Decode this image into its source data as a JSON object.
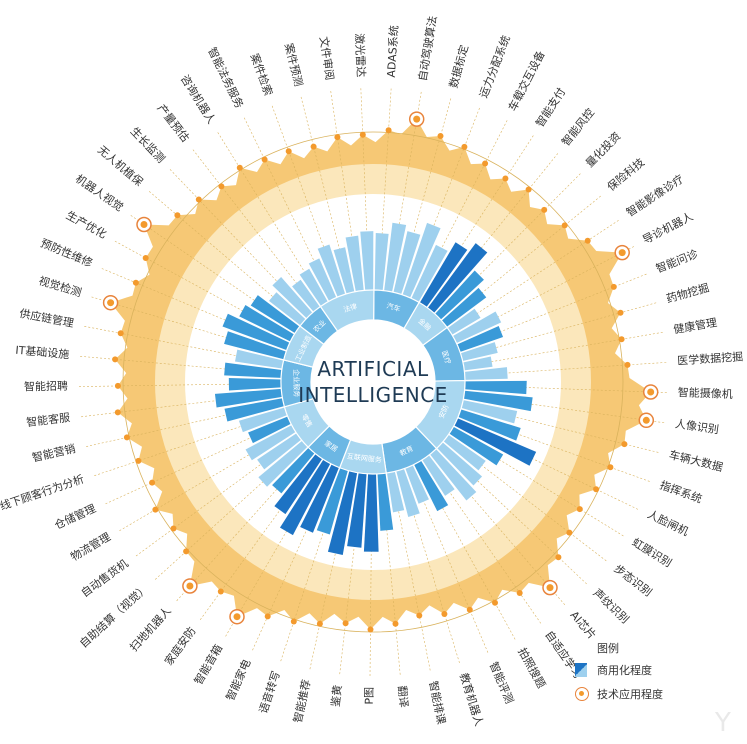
{
  "chart_data": {
    "type": "radial-bar",
    "title": "ARTIFICIAL INTELLIGENCE",
    "title_lines": [
      "ARTIFICIAL",
      "INTELLIGENCE"
    ],
    "applications": [
      {
        "label": "ADAS系统",
        "tech_level": 0.55,
        "highlight": false
      },
      {
        "label": "自动驾驶算法",
        "tech_level": 0.7,
        "highlight": true
      },
      {
        "label": "数据标定",
        "tech_level": 0.58,
        "highlight": false
      },
      {
        "label": "运力分配系统",
        "tech_level": 0.55,
        "highlight": false
      },
      {
        "label": "车载交互设备",
        "tech_level": 0.48,
        "highlight": false
      },
      {
        "label": "智能支付",
        "tech_level": 0.45,
        "highlight": false
      },
      {
        "label": "智能风控",
        "tech_level": 0.5,
        "highlight": false
      },
      {
        "label": "量化投资",
        "tech_level": 0.45,
        "highlight": false
      },
      {
        "label": "保险科技",
        "tech_level": 0.5,
        "highlight": false
      },
      {
        "label": "智能影像诊疗",
        "tech_level": 0.6,
        "highlight": false
      },
      {
        "label": "导诊机器人",
        "tech_level": 0.85,
        "highlight": true
      },
      {
        "label": "智能问诊",
        "tech_level": 0.62,
        "highlight": false
      },
      {
        "label": "药物挖掘",
        "tech_level": 0.6,
        "highlight": false
      },
      {
        "label": "健康管理",
        "tech_level": 0.55,
        "highlight": false
      },
      {
        "label": "医学数据挖掘",
        "tech_level": 0.58,
        "highlight": false
      },
      {
        "label": "智能摄像机",
        "tech_level": 0.82,
        "highlight": true
      },
      {
        "label": "人像识别",
        "tech_level": 0.8,
        "highlight": true
      },
      {
        "label": "车辆大数据",
        "tech_level": 0.62,
        "highlight": false
      },
      {
        "label": "指挥系统",
        "tech_level": 0.55,
        "highlight": false
      },
      {
        "label": "人脸闸机",
        "tech_level": 0.5,
        "highlight": false
      },
      {
        "label": "虹膜识别",
        "tech_level": 0.45,
        "highlight": false
      },
      {
        "label": "步态识别",
        "tech_level": 0.5,
        "highlight": false
      },
      {
        "label": "声纹识别",
        "tech_level": 0.58,
        "highlight": false
      },
      {
        "label": "AI芯片",
        "tech_level": 0.75,
        "highlight": true
      },
      {
        "label": "自适应学习",
        "tech_level": 0.6,
        "highlight": false
      },
      {
        "label": "拍照搜题",
        "tech_level": 0.55,
        "highlight": false
      },
      {
        "label": "智能评测",
        "tech_level": 0.5,
        "highlight": false
      },
      {
        "label": "教育机器人",
        "tech_level": 0.45,
        "highlight": false
      },
      {
        "label": "智能排课",
        "tech_level": 0.4,
        "highlight": false
      },
      {
        "label": "翻译",
        "tech_level": 0.45,
        "highlight": false
      },
      {
        "label": "P图",
        "tech_level": 0.5,
        "highlight": false
      },
      {
        "label": "鉴黄",
        "tech_level": 0.45,
        "highlight": false
      },
      {
        "label": "智能推荐",
        "tech_level": 0.5,
        "highlight": false
      },
      {
        "label": "语音转写",
        "tech_level": 0.55,
        "highlight": false
      },
      {
        "label": "智能家电",
        "tech_level": 0.6,
        "highlight": false
      },
      {
        "label": "智能音箱",
        "tech_level": 0.75,
        "highlight": true
      },
      {
        "label": "家庭安防",
        "tech_level": 0.62,
        "highlight": false
      },
      {
        "label": "扫地机器人",
        "tech_level": 0.78,
        "highlight": true
      },
      {
        "label": "自助结算（视觉）",
        "tech_level": 0.55,
        "highlight": false
      },
      {
        "label": "自动售货机",
        "tech_level": 0.5,
        "highlight": false
      },
      {
        "label": "物流管理",
        "tech_level": 0.55,
        "highlight": false
      },
      {
        "label": "仓储管理",
        "tech_level": 0.45,
        "highlight": false
      },
      {
        "label": "线下顾客行为分析",
        "tech_level": 0.5,
        "highlight": false
      },
      {
        "label": "智能营销",
        "tech_level": 0.55,
        "highlight": false
      },
      {
        "label": "智能客服",
        "tech_level": 0.6,
        "highlight": false
      },
      {
        "label": "智能招聘",
        "tech_level": 0.58,
        "highlight": false
      },
      {
        "label": "IT基础设施",
        "tech_level": 0.62,
        "highlight": false
      },
      {
        "label": "供应链管理",
        "tech_level": 0.6,
        "highlight": false
      },
      {
        "label": "视觉检测",
        "tech_level": 0.78,
        "highlight": true
      },
      {
        "label": "预防性维修",
        "tech_level": 0.6,
        "highlight": false
      },
      {
        "label": "生产优化",
        "tech_level": 0.62,
        "highlight": false
      },
      {
        "label": "机器人视觉",
        "tech_level": 0.82,
        "highlight": true
      },
      {
        "label": "无人机植保",
        "tech_level": 0.6,
        "highlight": false
      },
      {
        "label": "生长监测",
        "tech_level": 0.55,
        "highlight": false
      },
      {
        "label": "产量预估",
        "tech_level": 0.5,
        "highlight": false
      },
      {
        "label": "咨询机器人",
        "tech_level": 0.55,
        "highlight": false
      },
      {
        "label": "智能法务服务",
        "tech_level": 0.5,
        "highlight": false
      },
      {
        "label": "案件检索",
        "tech_level": 0.48,
        "highlight": false
      },
      {
        "label": "案件预测",
        "tech_level": 0.45,
        "highlight": false
      },
      {
        "label": "文件审阅",
        "tech_level": 0.5,
        "highlight": false
      },
      {
        "label": "激光雷达",
        "tech_level": 0.5,
        "highlight": false
      }
    ],
    "sectors": [
      {
        "label": "汽车",
        "start": 0,
        "end": 5
      },
      {
        "label": "金融",
        "start": 5,
        "end": 9
      },
      {
        "label": "医疗",
        "start": 9,
        "end": 15
      },
      {
        "label": "安防",
        "start": 15,
        "end": 23
      },
      {
        "label": "教育",
        "start": 23,
        "end": 29
      },
      {
        "label": "互联网服务",
        "start": 29,
        "end": 34
      },
      {
        "label": "家居",
        "start": 34,
        "end": 38
      },
      {
        "label": "零售",
        "start": 38,
        "end": 43
      },
      {
        "label": "企业服务",
        "start": 43,
        "end": 48
      },
      {
        "label": "工业制造",
        "start": 48,
        "end": 52
      },
      {
        "label": "农业",
        "start": 52,
        "end": 55
      },
      {
        "label": "法律",
        "start": 55,
        "end": 61
      }
    ],
    "commercial_bars": [
      {
        "value": 0.6,
        "tone": "light"
      },
      {
        "value": 0.72,
        "tone": "light"
      },
      {
        "value": 0.66,
        "tone": "light"
      },
      {
        "value": 0.8,
        "tone": "light"
      },
      {
        "value": 0.62,
        "tone": "light"
      },
      {
        "value": 0.74,
        "tone": "dark"
      },
      {
        "value": 0.85,
        "tone": "dark"
      },
      {
        "value": 0.62,
        "tone": "mid"
      },
      {
        "value": 0.52,
        "tone": "mid"
      },
      {
        "value": 0.35,
        "tone": "light"
      },
      {
        "value": 0.52,
        "tone": "light"
      },
      {
        "value": 0.48,
        "tone": "mid"
      },
      {
        "value": 0.38,
        "tone": "light"
      },
      {
        "value": 0.3,
        "tone": "light"
      },
      {
        "value": 0.45,
        "tone": "light"
      },
      {
        "value": 0.65,
        "tone": "mid"
      },
      {
        "value": 0.72,
        "tone": "mid"
      },
      {
        "value": 0.58,
        "tone": "light"
      },
      {
        "value": 0.66,
        "tone": "mid"
      },
      {
        "value": 0.9,
        "tone": "dark"
      },
      {
        "value": 0.6,
        "tone": "mid"
      },
      {
        "value": 0.48,
        "tone": "light"
      },
      {
        "value": 0.55,
        "tone": "light"
      },
      {
        "value": 0.62,
        "tone": "light"
      },
      {
        "value": 0.45,
        "tone": "light"
      },
      {
        "value": 0.55,
        "tone": "mid"
      },
      {
        "value": 0.4,
        "tone": "light"
      },
      {
        "value": 0.5,
        "tone": "light"
      },
      {
        "value": 0.42,
        "tone": "light"
      },
      {
        "value": 0.6,
        "tone": "mid"
      },
      {
        "value": 0.82,
        "tone": "dark"
      },
      {
        "value": 0.78,
        "tone": "dark"
      },
      {
        "value": 0.88,
        "tone": "dark"
      },
      {
        "value": 0.7,
        "tone": "mid"
      },
      {
        "value": 0.74,
        "tone": "dark"
      },
      {
        "value": 0.85,
        "tone": "dark"
      },
      {
        "value": 0.7,
        "tone": "dark"
      },
      {
        "value": 0.55,
        "tone": "mid"
      },
      {
        "value": 0.6,
        "tone": "light"
      },
      {
        "value": 0.5,
        "tone": "light"
      },
      {
        "value": 0.55,
        "tone": "light"
      },
      {
        "value": 0.45,
        "tone": "mid"
      },
      {
        "value": 0.5,
        "tone": "light"
      },
      {
        "value": 0.62,
        "tone": "mid"
      },
      {
        "value": 0.7,
        "tone": "mid"
      },
      {
        "value": 0.55,
        "tone": "mid"
      },
      {
        "value": 0.6,
        "tone": "mid"
      },
      {
        "value": 0.5,
        "tone": "light"
      },
      {
        "value": 0.65,
        "tone": "mid"
      },
      {
        "value": 0.72,
        "tone": "mid"
      },
      {
        "value": 0.6,
        "tone": "mid"
      },
      {
        "value": 0.55,
        "tone": "mid"
      },
      {
        "value": 0.42,
        "tone": "light"
      },
      {
        "value": 0.5,
        "tone": "light"
      },
      {
        "value": 0.35,
        "tone": "light"
      },
      {
        "value": 0.4,
        "tone": "light"
      },
      {
        "value": 0.45,
        "tone": "light"
      },
      {
        "value": 0.55,
        "tone": "light"
      },
      {
        "value": 0.48,
        "tone": "light"
      },
      {
        "value": 0.58,
        "tone": "light"
      },
      {
        "value": 0.62,
        "tone": "light"
      }
    ],
    "colors": {
      "dark_bar": "#1d73c4",
      "mid_bar": "#3a9ad8",
      "light_bar": "#9ed0ee",
      "sector_ring": "#6cb7e4",
      "sector_ring_light": "#a9d7f0",
      "area_fill": "#f6c875",
      "area_band": "#fbe7bb",
      "dot": "#f39a2d",
      "highlight_ring": "#e8843c",
      "leader_line": "#d9b25c",
      "center_text": "#1f3b55"
    },
    "legend": {
      "title": "图例",
      "commercial": "商用化程度",
      "technology": "技术应用程度"
    }
  }
}
